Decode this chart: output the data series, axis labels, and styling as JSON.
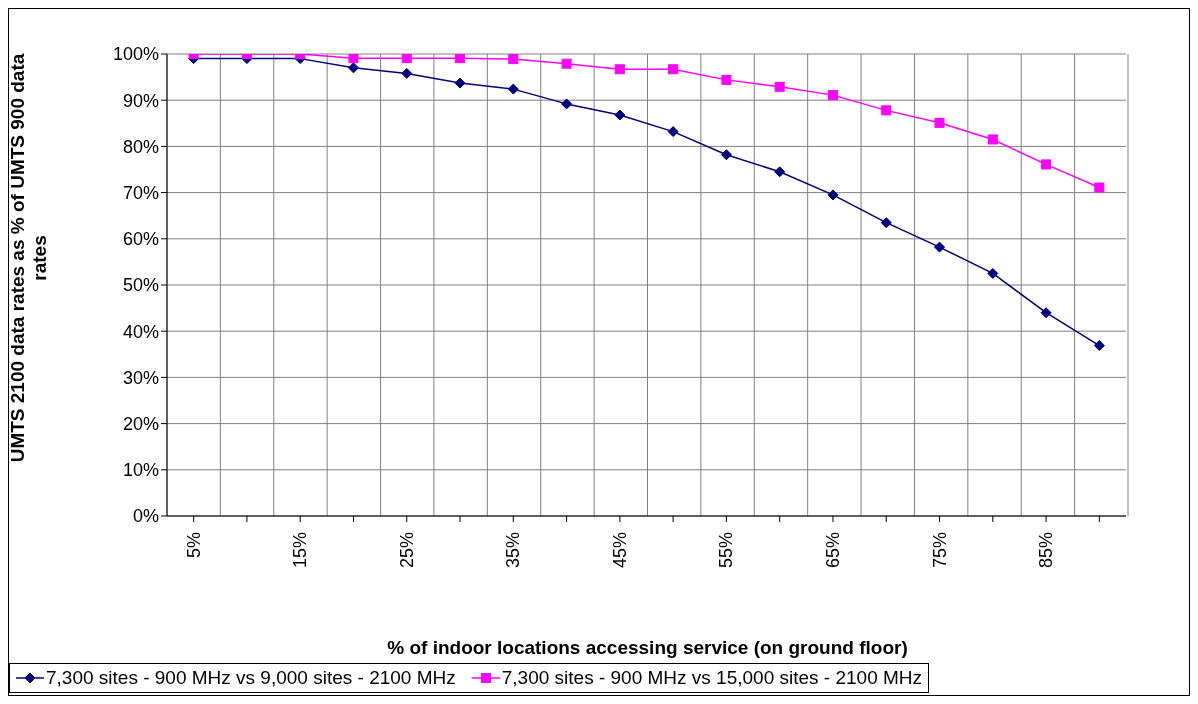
{
  "chart_data": {
    "type": "line",
    "ylabel": "UMTS 2100 data rates as % of UMTS 900 data rates",
    "xlabel": "% of indoor locations accessing service (on ground floor)",
    "categories": [
      "5%",
      null,
      "15%",
      null,
      "25%",
      null,
      "35%",
      null,
      "45%",
      null,
      "55%",
      null,
      "65%",
      null,
      "75%",
      null,
      "85%",
      null
    ],
    "series": [
      {
        "name": "7,300 sites - 900 MHz vs 9,000 sites - 2100 MHz",
        "color": "#000080",
        "marker": "diamond",
        "values": [
          99,
          99,
          99,
          97,
          95.8,
          93.7,
          92.4,
          89.2,
          86.8,
          83.2,
          78.2,
          74.5,
          69.5,
          63.5,
          58.2,
          52.5,
          44,
          36.9
        ]
      },
      {
        "name": "7,300 sites - 900 MHz vs 15,000 sites - 2100 MHz",
        "color": "#ff00ff",
        "marker": "square",
        "values": [
          100,
          100,
          100,
          99.1,
          99.1,
          99.1,
          98.9,
          97.9,
          96.7,
          96.7,
          94.4,
          92.9,
          91.1,
          87.8,
          85.1,
          81.5,
          76.1,
          71.1
        ]
      }
    ],
    "ylim": [
      0,
      100
    ],
    "yticks": [
      {
        "value": 0,
        "label": "0%"
      },
      {
        "value": 10,
        "label": "10%"
      },
      {
        "value": 20,
        "label": "20%"
      },
      {
        "value": 30,
        "label": "30%"
      },
      {
        "value": 40,
        "label": "40%"
      },
      {
        "value": 50,
        "label": "50%"
      },
      {
        "value": 60,
        "label": "60%"
      },
      {
        "value": 70,
        "label": "70%"
      },
      {
        "value": 80,
        "label": "80%"
      },
      {
        "value": 90,
        "label": "90%"
      },
      {
        "value": 100,
        "label": "100%"
      }
    ],
    "grid": true,
    "legend": "bottom",
    "line_style": "solid"
  }
}
